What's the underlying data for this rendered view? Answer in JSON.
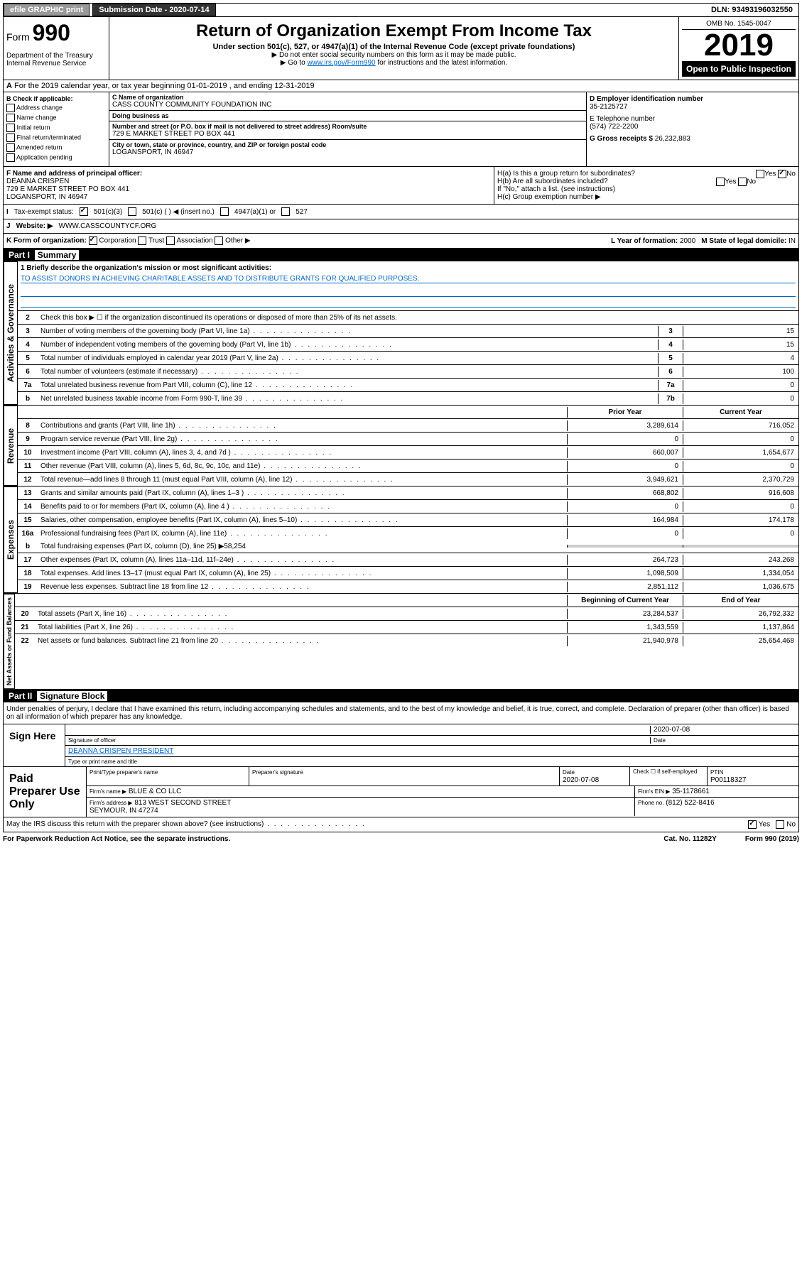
{
  "topbar": {
    "efile": "efile GRAPHIC print",
    "subdate_lbl": "Submission Date - 2020-07-14",
    "dln": "DLN: 93493196032550"
  },
  "header": {
    "form": "Form",
    "formnum": "990",
    "title": "Return of Organization Exempt From Income Tax",
    "sub": "Under section 501(c), 527, or 4947(a)(1) of the Internal Revenue Code (except private foundations)",
    "note1": "▶ Do not enter social security numbers on this form as it may be made public.",
    "note2_pre": "▶ Go to ",
    "note2_link": "www.irs.gov/Form990",
    "note2_post": " for instructions and the latest information.",
    "dept": "Department of the Treasury\nInternal Revenue Service",
    "omb": "OMB No. 1545-0047",
    "year": "2019",
    "open": "Open to Public Inspection"
  },
  "a": {
    "text": "For the 2019 calendar year, or tax year beginning 01-01-2019   , and ending 12-31-2019"
  },
  "b": {
    "hdr": "B Check if applicable:",
    "items": [
      "Address change",
      "Name change",
      "Initial return",
      "Final return/terminated",
      "Amended return",
      "Application pending"
    ]
  },
  "c": {
    "name_lbl": "C Name of organization",
    "name": "CASS COUNTY COMMUNITY FOUNDATION INC",
    "dba_lbl": "Doing business as",
    "dba": "",
    "addr_lbl": "Number and street (or P.O. box if mail is not delivered to street address)     Room/suite",
    "addr": "729 E MARKET STREET PO BOX 441",
    "city_lbl": "City or town, state or province, country, and ZIP or foreign postal code",
    "city": "LOGANSPORT, IN  46947"
  },
  "d": {
    "lbl": "D Employer identification number",
    "val": "35-2125727"
  },
  "e": {
    "lbl": "E Telephone number",
    "val": "(574) 722-2200"
  },
  "g": {
    "lbl": "G Gross receipts $",
    "val": "26,232,883"
  },
  "f": {
    "lbl": "F Name and address of principal officer:",
    "name": "DEANNA CRISPEN",
    "addr1": "729 E MARKET STREET PO BOX 441",
    "addr2": "LOGANSPORT, IN  46947"
  },
  "h": {
    "a_lbl": "H(a)  Is this a group return for subordinates?",
    "a_no": true,
    "b_lbl": "H(b)  Are all subordinates included?",
    "b_note": "If \"No,\" attach a list. (see instructions)",
    "c_lbl": "H(c)  Group exemption number ▶"
  },
  "i": {
    "lbl": "Tax-exempt status:",
    "c501c3": true,
    "opts": [
      "501(c)(3)",
      "501(c) (  ) ◀ (insert no.)",
      "4947(a)(1) or",
      "527"
    ]
  },
  "j": {
    "lbl": "Website: ▶",
    "val": "WWW.CASSCOUNTYCF.ORG"
  },
  "k": {
    "lbl": "K Form of organization:",
    "corp": true,
    "opts": [
      "Corporation",
      "Trust",
      "Association",
      "Other ▶"
    ]
  },
  "l": {
    "lbl": "L Year of formation:",
    "val": "2000"
  },
  "m": {
    "lbl": "M State of legal domicile:",
    "val": "IN"
  },
  "part1": {
    "hdr": "Part I",
    "title": "Summary"
  },
  "gov": {
    "label": "Activities & Governance",
    "mission_lbl": "1  Briefly describe the organization's mission or most significant activities:",
    "mission": "TO ASSIST DONORS IN ACHIEVING CHARITABLE ASSETS AND TO DISTRIBUTE GRANTS FOR QUALIFIED PURPOSES.",
    "l2": "Check this box ▶ ☐  if the organization discontinued its operations or disposed of more than 25% of its net assets.",
    "rows": [
      {
        "n": "3",
        "d": "Number of voting members of the governing body (Part VI, line 1a)",
        "b": "3",
        "v": "15"
      },
      {
        "n": "4",
        "d": "Number of independent voting members of the governing body (Part VI, line 1b)",
        "b": "4",
        "v": "15"
      },
      {
        "n": "5",
        "d": "Total number of individuals employed in calendar year 2019 (Part V, line 2a)",
        "b": "5",
        "v": "4"
      },
      {
        "n": "6",
        "d": "Total number of volunteers (estimate if necessary)",
        "b": "6",
        "v": "100"
      },
      {
        "n": "7a",
        "d": "Total unrelated business revenue from Part VIII, column (C), line 12",
        "b": "7a",
        "v": "0"
      },
      {
        "n": "b",
        "d": "Net unrelated business taxable income from Form 990-T, line 39",
        "b": "7b",
        "v": "0"
      }
    ]
  },
  "rev": {
    "label": "Revenue",
    "hdr_prior": "Prior Year",
    "hdr_curr": "Current Year",
    "rows": [
      {
        "n": "8",
        "d": "Contributions and grants (Part VIII, line 1h)",
        "p": "3,289,614",
        "c": "716,052"
      },
      {
        "n": "9",
        "d": "Program service revenue (Part VIII, line 2g)",
        "p": "0",
        "c": "0"
      },
      {
        "n": "10",
        "d": "Investment income (Part VIII, column (A), lines 3, 4, and 7d )",
        "p": "660,007",
        "c": "1,654,677"
      },
      {
        "n": "11",
        "d": "Other revenue (Part VIII, column (A), lines 5, 6d, 8c, 9c, 10c, and 11e)",
        "p": "0",
        "c": "0"
      },
      {
        "n": "12",
        "d": "Total revenue—add lines 8 through 11 (must equal Part VIII, column (A), line 12)",
        "p": "3,949,621",
        "c": "2,370,729"
      }
    ]
  },
  "exp": {
    "label": "Expenses",
    "rows": [
      {
        "n": "13",
        "d": "Grants and similar amounts paid (Part IX, column (A), lines 1–3 )",
        "p": "668,802",
        "c": "916,608"
      },
      {
        "n": "14",
        "d": "Benefits paid to or for members (Part IX, column (A), line 4 )",
        "p": "0",
        "c": "0"
      },
      {
        "n": "15",
        "d": "Salaries, other compensation, employee benefits (Part IX, column (A), lines 5–10)",
        "p": "164,984",
        "c": "174,178"
      },
      {
        "n": "16a",
        "d": "Professional fundraising fees (Part IX, column (A), line 11e)",
        "p": "0",
        "c": "0"
      }
    ],
    "l16b": "Total fundraising expenses (Part IX, column (D), line 25) ▶58,254",
    "rows2": [
      {
        "n": "17",
        "d": "Other expenses (Part IX, column (A), lines 11a–11d, 11f–24e)",
        "p": "264,723",
        "c": "243,268"
      },
      {
        "n": "18",
        "d": "Total expenses. Add lines 13–17 (must equal Part IX, column (A), line 25)",
        "p": "1,098,509",
        "c": "1,334,054"
      },
      {
        "n": "19",
        "d": "Revenue less expenses. Subtract line 18 from line 12",
        "p": "2,851,112",
        "c": "1,036,675"
      }
    ]
  },
  "net": {
    "label": "Net Assets or Fund Balances",
    "hdr_beg": "Beginning of Current Year",
    "hdr_end": "End of Year",
    "rows": [
      {
        "n": "20",
        "d": "Total assets (Part X, line 16)",
        "p": "23,284,537",
        "c": "26,792,332"
      },
      {
        "n": "21",
        "d": "Total liabilities (Part X, line 26)",
        "p": "1,343,559",
        "c": "1,137,864"
      },
      {
        "n": "22",
        "d": "Net assets or fund balances. Subtract line 21 from line 20",
        "p": "21,940,978",
        "c": "25,654,468"
      }
    ]
  },
  "part2": {
    "hdr": "Part II",
    "title": "Signature Block"
  },
  "sig": {
    "decl": "Under penalties of perjury, I declare that I have examined this return, including accompanying schedules and statements, and to the best of my knowledge and belief, it is true, correct, and complete. Declaration of preparer (other than officer) is based on all information of which preparer has any knowledge.",
    "label": "Sign Here",
    "date": "2020-07-08",
    "sig_lbl": "Signature of officer",
    "date_lbl": "Date",
    "name": "DEANNA CRISPEN  PRESIDENT",
    "name_lbl": "Type or print name and title"
  },
  "prep": {
    "label": "Paid Preparer Use Only",
    "h1": "Print/Type preparer's name",
    "h2": "Preparer's signature",
    "h3": "Date",
    "h3v": "2020-07-08",
    "h4": "Check ☐ if self-employed",
    "h5": "PTIN",
    "h5v": "P00118327",
    "firm_lbl": "Firm's name   ▶",
    "firm": "BLUE & CO LLC",
    "ein_lbl": "Firm's EIN ▶",
    "ein": "35-1178661",
    "addr_lbl": "Firm's address ▶",
    "addr": "813 WEST SECOND STREET\nSEYMOUR, IN  47274",
    "phone_lbl": "Phone no.",
    "phone": "(812) 522-8416"
  },
  "footer": {
    "q": "May the IRS discuss this return with the preparer shown above? (see instructions)",
    "yes": true
  },
  "bottom": {
    "l": "For Paperwork Reduction Act Notice, see the separate instructions.",
    "c": "Cat. No. 11282Y",
    "r": "Form 990 (2019)"
  }
}
